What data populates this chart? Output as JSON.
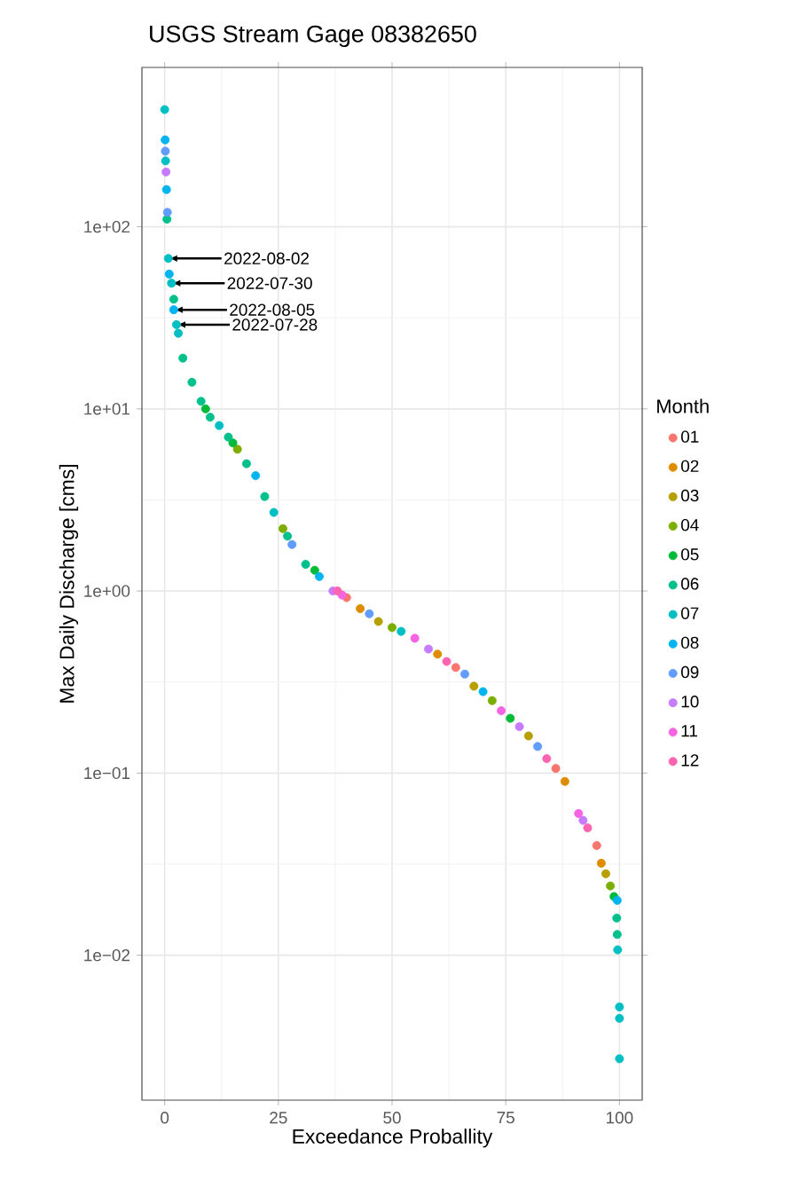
{
  "chart_data": {
    "type": "scatter",
    "title": "USGS Stream Gage 08382650",
    "xlabel": "Exceedance Proballity",
    "ylabel": "Max Daily Discharge [cms]",
    "legend_title": "Month",
    "legend": "right",
    "grid": true,
    "log": "y",
    "xlim": [
      -5,
      105
    ],
    "xticks": [
      0,
      25,
      50,
      75,
      100
    ],
    "ylim": [
      0.0016,
      750
    ],
    "yticks": [
      {
        "value": 0.01,
        "label": "1e−02"
      },
      {
        "value": 0.1,
        "label": "1e−01"
      },
      {
        "value": 1,
        "label": "1e+00"
      },
      {
        "value": 10,
        "label": "1e+01"
      },
      {
        "value": 100,
        "label": "1e+02"
      }
    ],
    "series": [
      {
        "name": "01",
        "color": "#F8766D",
        "x": [
          40,
          64,
          86,
          95
        ],
        "values": [
          0.92,
          0.38,
          0.106,
          0.04
        ]
      },
      {
        "name": "02",
        "color": "#DE8C00",
        "x": [
          43,
          60,
          88,
          96
        ],
        "values": [
          0.8,
          0.45,
          0.09,
          0.032
        ]
      },
      {
        "name": "03",
        "color": "#B79F00",
        "x": [
          47,
          68,
          80,
          97
        ],
        "values": [
          0.68,
          0.3,
          0.16,
          0.028
        ]
      },
      {
        "name": "04",
        "color": "#7CAE00",
        "x": [
          16,
          26,
          50,
          72,
          98
        ],
        "values": [
          6,
          2.2,
          0.63,
          0.25,
          0.024
        ]
      },
      {
        "name": "05",
        "color": "#00BA38",
        "x": [
          9,
          15,
          33,
          76,
          98.8
        ],
        "values": [
          10,
          6.5,
          1.3,
          0.2,
          0.021
        ]
      },
      {
        "name": "06",
        "color": "#00C08B",
        "x": [
          0.5,
          2,
          4,
          6,
          8,
          10,
          14,
          18,
          22,
          27,
          31,
          99.4,
          99.5
        ],
        "values": [
          110,
          40,
          19,
          14,
          11,
          9,
          7,
          5,
          3.3,
          2,
          1.4,
          0.016,
          0.013
        ]
      },
      {
        "name": "07",
        "color": "#00BFC4",
        "x": [
          0,
          0.2,
          0.8,
          1.5,
          2.6,
          3,
          12,
          24,
          52,
          99.6,
          100,
          100,
          100
        ],
        "values": [
          440,
          230,
          67,
          49,
          29,
          26,
          8.1,
          2.7,
          0.6,
          0.0107,
          0.0052,
          0.0045,
          0.0027
        ]
      },
      {
        "name": "08",
        "color": "#00B4F0",
        "x": [
          0.1,
          0.4,
          1,
          2,
          20,
          34,
          70,
          99.5
        ],
        "values": [
          300,
          160,
          55,
          35,
          4.3,
          1.2,
          0.28,
          0.02
        ]
      },
      {
        "name": "09",
        "color": "#619CFF",
        "x": [
          0.15,
          0.6,
          28,
          45,
          66,
          82
        ],
        "values": [
          260,
          120,
          1.8,
          0.75,
          0.35,
          0.14
        ]
      },
      {
        "name": "10",
        "color": "#C77CFF",
        "x": [
          0.3,
          37,
          58,
          78,
          92
        ],
        "values": [
          200,
          1,
          0.48,
          0.18,
          0.055
        ]
      },
      {
        "name": "11",
        "color": "#F564E3",
        "x": [
          39,
          55,
          74,
          91
        ],
        "values": [
          0.95,
          0.55,
          0.22,
          0.06
        ]
      },
      {
        "name": "12",
        "color": "#FF64B0",
        "x": [
          38,
          62,
          84,
          93
        ],
        "values": [
          1,
          0.41,
          0.12,
          0.05
        ]
      }
    ],
    "annotations": [
      {
        "text": "2022-08-02",
        "x": 0.8,
        "y": 67
      },
      {
        "text": "2022-07-30",
        "x": 1.5,
        "y": 49
      },
      {
        "text": "2022-08-05",
        "x": 2,
        "y": 35
      },
      {
        "text": "2022-07-28",
        "x": 2.6,
        "y": 29
      }
    ]
  }
}
